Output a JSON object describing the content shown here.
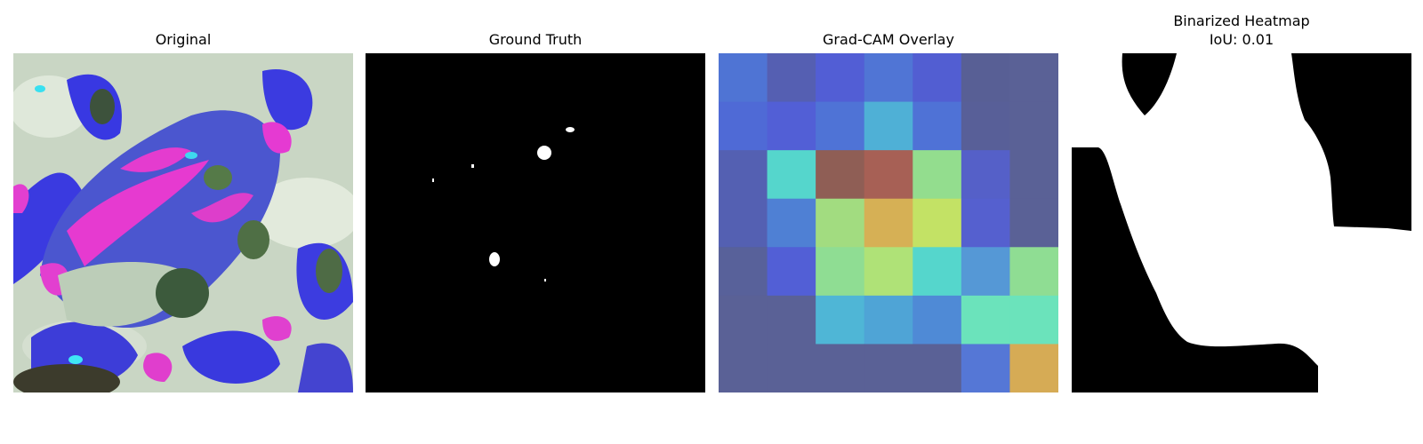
{
  "panels": [
    {
      "title": "Original"
    },
    {
      "title": "Ground Truth"
    },
    {
      "title": "Grad-CAM Overlay"
    },
    {
      "title": "Binarized Heatmap",
      "subtitle": "IoU: 0.01"
    }
  ],
  "chart_data": [
    {
      "type": "image",
      "title": "Original",
      "content": "leaf image with false-color (blue, magenta, pale green) texture"
    },
    {
      "type": "image",
      "title": "Ground Truth",
      "content": "binary mask, mostly black with a few small white spots"
    },
    {
      "type": "heatmap",
      "title": "Grad-CAM Overlay",
      "rows": 7,
      "cols": 7,
      "colors": [
        [
          "#4f74d4",
          "#555fb2",
          "#525ed5",
          "#5075d5",
          "#525ed2",
          "#585f95",
          "#5a6196"
        ],
        [
          "#4f6ad6",
          "#525fd6",
          "#4f73d6",
          "#4fb0d6",
          "#4f72d6",
          "#585f98",
          "#5a6196"
        ],
        [
          "#5460b2",
          "#55d6cc",
          "#8f5e55",
          "#a76055",
          "#93dd8e",
          "#5560c8",
          "#5a6196"
        ],
        [
          "#5460b2",
          "#4f80d4",
          "#a2dc80",
          "#d6b055",
          "#c3e265",
          "#5560cf",
          "#5a6196"
        ],
        [
          "#58619a",
          "#525fd6",
          "#8fdd93",
          "#afe277",
          "#55d6cc",
          "#5598d6",
          "#8fdd93"
        ],
        [
          "#5a6196",
          "#5a6196",
          "#4fb6d6",
          "#4fa4d6",
          "#4f8ad6",
          "#6be3bb",
          "#6be3bb"
        ],
        [
          "#5a6196",
          "#5a6196",
          "#5a6196",
          "#5a6196",
          "#5a6196",
          "#5577d6",
          "#d6ab55"
        ]
      ]
    },
    {
      "type": "image",
      "title": "Binarized Heatmap",
      "subtitle": "IoU: 0.01",
      "iou": 0.01,
      "content": "binary mask of thresholded Grad-CAM"
    }
  ]
}
